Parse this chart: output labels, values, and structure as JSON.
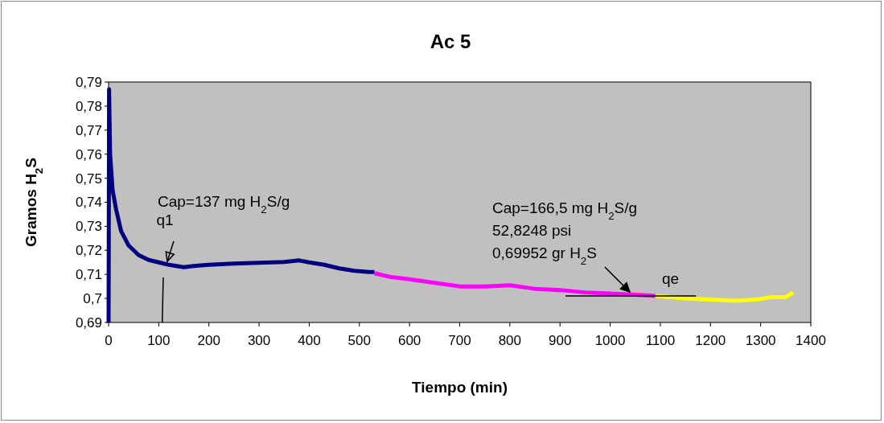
{
  "chart_data": {
    "type": "line",
    "title": "Ac 5",
    "xlabel": "Tiempo (min)",
    "ylabel": "Gramos H$_{2}$S",
    "xlim": [
      0,
      1400
    ],
    "xticks": [
      0,
      100,
      200,
      300,
      400,
      500,
      600,
      700,
      800,
      900,
      1000,
      1100,
      1200,
      1300,
      1400
    ],
    "ylim": [
      0.69,
      0.79
    ],
    "yticks": [
      {
        "value": 0.69,
        "label": "0,69"
      },
      {
        "value": 0.7,
        "label": "0,7"
      },
      {
        "value": 0.71,
        "label": "0,71"
      },
      {
        "value": 0.72,
        "label": "0,72"
      },
      {
        "value": 0.73,
        "label": "0,73"
      },
      {
        "value": 0.74,
        "label": "0,74"
      },
      {
        "value": 0.75,
        "label": "0,75"
      },
      {
        "value": 0.76,
        "label": "0,76"
      },
      {
        "value": 0.77,
        "label": "0,77"
      },
      {
        "value": 0.78,
        "label": "0,78"
      },
      {
        "value": 0.79,
        "label": "0,79"
      }
    ],
    "grid": false,
    "series": [
      {
        "color": "#000080",
        "x": [
          0,
          1,
          3,
          8,
          15,
          25,
          40,
          60,
          80,
          100,
          120,
          150,
          170,
          200,
          250,
          300,
          350,
          380,
          400,
          430,
          460,
          490,
          520,
          530
        ],
        "values": [
          0.69,
          0.787,
          0.76,
          0.745,
          0.737,
          0.728,
          0.722,
          0.718,
          0.716,
          0.715,
          0.714,
          0.713,
          0.7135,
          0.714,
          0.7145,
          0.7148,
          0.7152,
          0.7158,
          0.715,
          0.714,
          0.7125,
          0.7115,
          0.711,
          0.711
        ]
      },
      {
        "color": "#ff00ff",
        "x": [
          530,
          560,
          600,
          650,
          700,
          750,
          800,
          850,
          900,
          950,
          1000,
          1050,
          1090
        ],
        "values": [
          0.7105,
          0.709,
          0.708,
          0.7065,
          0.705,
          0.705,
          0.7055,
          0.704,
          0.7035,
          0.7025,
          0.702,
          0.7015,
          0.701
        ]
      },
      {
        "color": "#ffff00",
        "x": [
          1090,
          1120,
          1150,
          1200,
          1250,
          1290,
          1320,
          1350,
          1365
        ],
        "values": [
          0.701,
          0.7005,
          0.7,
          0.6995,
          0.699,
          0.6995,
          0.7005,
          0.7005,
          0.7025
        ]
      },
      {
        "color": "#000000",
        "x": [
          911,
          1171
        ],
        "values": [
          0.701,
          0.701
        ]
      },
      {
        "color": "#000000",
        "x": [
          109,
          107
        ],
        "values": [
          0.7087,
          0.69
        ]
      }
    ],
    "annotations": [
      {
        "text": "q1",
        "x": 117,
        "y": 0.7154
      },
      {
        "text": "qe",
        "x": 1039,
        "y": 0.7027
      },
      "Cap=137 mg H$_{2}$S/g",
      "Cap=166,5 mg H$_{2}$S/g\n52,8248 psi\n0,69952 gr H$_{2}$S"
    ]
  }
}
